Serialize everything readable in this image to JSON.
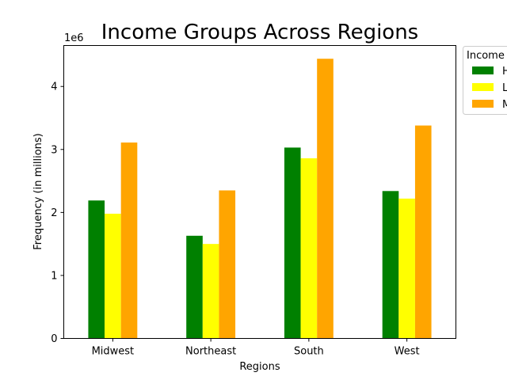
{
  "chart_data": {
    "type": "bar",
    "title": "Income Groups Across Regions",
    "xlabel": "Regions",
    "ylabel": "Frequency (in millions)",
    "y_offset_label": "1e6",
    "categories": [
      "Midwest",
      "Northeast",
      "South",
      "West"
    ],
    "series": [
      {
        "name": "H",
        "color": "#008000",
        "values": [
          2190000,
          1630000,
          3030000,
          2340000
        ]
      },
      {
        "name": "L",
        "color": "#ffff00",
        "values": [
          1980000,
          1500000,
          2860000,
          2220000
        ]
      },
      {
        "name": "M",
        "color": "#ffa500",
        "values": [
          3110000,
          2350000,
          4440000,
          3380000
        ]
      }
    ],
    "ylim": [
      0,
      4650000
    ],
    "yticks": [
      0,
      1000000,
      2000000,
      3000000,
      4000000
    ],
    "ytick_labels": [
      "0",
      "1",
      "2",
      "3",
      "4"
    ],
    "legend_title": "Income",
    "legend_position": "outside-top-right",
    "grid": false
  }
}
